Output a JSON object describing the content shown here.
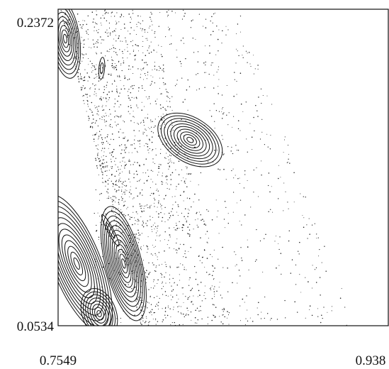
{
  "chart_data": {
    "type": "scatter",
    "title": "",
    "xlabel": "",
    "ylabel": "",
    "xlim": [
      0.7549,
      0.938
    ],
    "ylim": [
      0.0534,
      0.2372
    ],
    "x_tick_labels": [
      "0.7549",
      "0.938"
    ],
    "y_tick_labels": [
      "0.2372",
      "0.0534"
    ],
    "grid": false,
    "legend": "none",
    "ink_color": "#111111",
    "regular_islands": [
      {
        "center": [
          0.7588,
          0.2201
        ],
        "semi_axes": [
          0.008,
          0.0232
        ],
        "rings": 9,
        "tilt_deg": -8
      },
      {
        "center": [
          0.8281,
          0.1613
        ],
        "semi_axes": [
          0.0198,
          0.0128
        ],
        "rings": 10,
        "tilt_deg": 33
      },
      {
        "center": [
          0.7912,
          0.0895
        ],
        "semi_axes": [
          0.0101,
          0.0341
        ],
        "rings": 12,
        "tilt_deg": -14
      },
      {
        "center": [
          0.7652,
          0.0895
        ],
        "semi_axes": [
          0.0135,
          0.0427
        ],
        "rings": 12,
        "tilt_deg": -22
      },
      {
        "center": [
          0.7777,
          0.0604
        ],
        "semi_axes": [
          0.0094,
          0.0151
        ],
        "rings": 8,
        "tilt_deg": -20
      }
    ],
    "small_islands": [
      {
        "center": [
          0.7791,
          0.2029
        ],
        "semi_axes": [
          0.0016,
          0.0064
        ],
        "tilt_deg": 5
      },
      {
        "center": [
          0.7839,
          0.1088
        ],
        "semi_axes": [
          0.0016,
          0.0103
        ],
        "tilt_deg": -28
      }
    ],
    "chaotic_sea": {
      "description_points": 2200,
      "band_x_range": [
        0.756,
        0.81
      ],
      "sparse_x_range": [
        0.775,
        0.92
      ]
    }
  }
}
